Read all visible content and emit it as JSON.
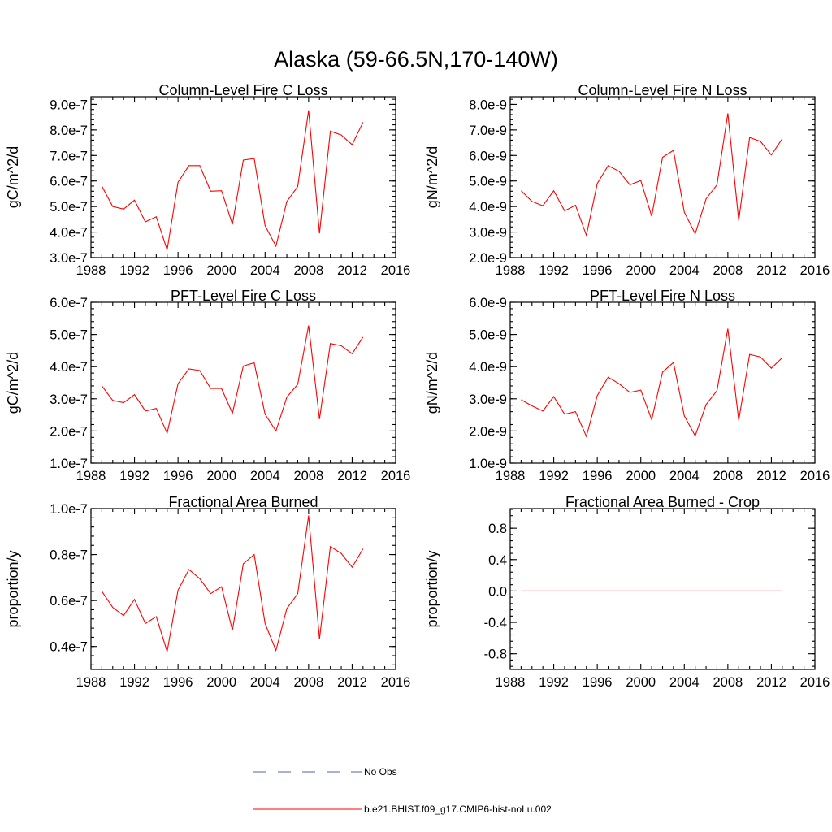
{
  "title": "Alaska (59-66.5N,170-140W)",
  "colors": {
    "model": "#ff0000",
    "obs": "#5060b0",
    "axis": "#000000"
  },
  "legend": {
    "items": [
      {
        "label": "No Obs",
        "style": "dashed",
        "color": "#5060b0"
      },
      {
        "label": "b.e21.BHIST.f09_g17.CMIP6-hist-noLu.002",
        "style": "solid",
        "color": "#ff0000"
      }
    ]
  },
  "chart_data": [
    {
      "type": "line",
      "title": "Column-Level Fire C Loss",
      "ylabel": "gC/m^2/d",
      "xlim": [
        1988,
        2016
      ],
      "ylim": [
        3e-07,
        9.3e-07
      ],
      "xticks": [
        1988,
        1992,
        1996,
        2000,
        2004,
        2008,
        2012,
        2016
      ],
      "yticks": [
        3e-07,
        4e-07,
        5e-07,
        6e-07,
        7e-07,
        8e-07,
        9e-07
      ],
      "ytick_labels": [
        "3.0e-7",
        "4.0e-7",
        "5.0e-7",
        "6.0e-7",
        "7.0e-7",
        "8.0e-7",
        "9.0e-7"
      ],
      "series": [
        {
          "name": "b.e21.BHIST.f09_g17.CMIP6-hist-noLu.002",
          "x": [
            1989,
            1990,
            1991,
            1992,
            1993,
            1994,
            1995,
            1996,
            1997,
            1998,
            1999,
            2000,
            2001,
            2002,
            2003,
            2004,
            2005,
            2006,
            2007,
            2008,
            2009,
            2010,
            2011,
            2012,
            2013
          ],
          "values": [
            5.8e-07,
            5e-07,
            4.9e-07,
            5.25e-07,
            4.4e-07,
            4.6e-07,
            3.3e-07,
            5.95e-07,
            6.6e-07,
            6.6e-07,
            5.6e-07,
            5.62e-07,
            4.3e-07,
            6.82e-07,
            6.88e-07,
            4.25e-07,
            3.45e-07,
            5.2e-07,
            5.78e-07,
            8.77e-07,
            3.95e-07,
            7.95e-07,
            7.8e-07,
            7.42e-07,
            8.3e-07
          ]
        }
      ]
    },
    {
      "type": "line",
      "title": "Column-Level Fire N Loss",
      "ylabel": "gN/m^2/d",
      "xlim": [
        1988,
        2016
      ],
      "ylim": [
        2e-09,
        8.3e-09
      ],
      "xticks": [
        1988,
        1992,
        1996,
        2000,
        2004,
        2008,
        2012,
        2016
      ],
      "yticks": [
        2e-09,
        3e-09,
        4e-09,
        5e-09,
        6e-09,
        7e-09,
        8e-09
      ],
      "ytick_labels": [
        "2.0e-9",
        "3.0e-9",
        "4.0e-9",
        "5.0e-9",
        "6.0e-9",
        "7.0e-9",
        "8.0e-9"
      ],
      "series": [
        {
          "name": "b.e21.BHIST.f09_g17.CMIP6-hist-noLu.002",
          "x": [
            1989,
            1990,
            1991,
            1992,
            1993,
            1994,
            1995,
            1996,
            1997,
            1998,
            1999,
            2000,
            2001,
            2002,
            2003,
            2004,
            2005,
            2006,
            2007,
            2008,
            2009,
            2010,
            2011,
            2012,
            2013
          ],
          "values": [
            4.62e-09,
            4.2e-09,
            4.03e-09,
            4.62e-09,
            3.83e-09,
            4.05e-09,
            2.87e-09,
            4.9e-09,
            5.6e-09,
            5.38e-09,
            4.85e-09,
            5.02e-09,
            3.62e-09,
            5.93e-09,
            6.2e-09,
            3.78e-09,
            2.93e-09,
            4.3e-09,
            4.85e-09,
            7.65e-09,
            3.45e-09,
            6.7e-09,
            6.55e-09,
            6.02e-09,
            6.65e-09
          ]
        }
      ]
    },
    {
      "type": "line",
      "title": "PFT-Level Fire C Loss",
      "ylabel": "gC/m^2/d",
      "xlim": [
        1988,
        2016
      ],
      "ylim": [
        1e-07,
        6e-07
      ],
      "xticks": [
        1988,
        1992,
        1996,
        2000,
        2004,
        2008,
        2012,
        2016
      ],
      "yticks": [
        1e-07,
        2e-07,
        3e-07,
        4e-07,
        5e-07,
        6e-07
      ],
      "ytick_labels": [
        "1.0e-7",
        "2.0e-7",
        "3.0e-7",
        "4.0e-7",
        "5.0e-7",
        "6.0e-7"
      ],
      "series": [
        {
          "name": "b.e21.BHIST.f09_g17.CMIP6-hist-noLu.002",
          "x": [
            1989,
            1990,
            1991,
            1992,
            1993,
            1994,
            1995,
            1996,
            1997,
            1998,
            1999,
            2000,
            2001,
            2002,
            2003,
            2004,
            2005,
            2006,
            2007,
            2008,
            2009,
            2010,
            2011,
            2012,
            2013
          ],
          "values": [
            3.4e-07,
            2.95e-07,
            2.88e-07,
            3.13e-07,
            2.62e-07,
            2.7e-07,
            1.93e-07,
            3.47e-07,
            3.93e-07,
            3.88e-07,
            3.32e-07,
            3.32e-07,
            2.55e-07,
            4.02e-07,
            4.12e-07,
            2.52e-07,
            2e-07,
            3.05e-07,
            3.45e-07,
            5.28e-07,
            2.37e-07,
            4.72e-07,
            4.65e-07,
            4.4e-07,
            4.92e-07
          ]
        }
      ]
    },
    {
      "type": "line",
      "title": "PFT-Level Fire N Loss",
      "ylabel": "gN/m^2/d",
      "xlim": [
        1988,
        2016
      ],
      "ylim": [
        1e-09,
        6e-09
      ],
      "xticks": [
        1988,
        1992,
        1996,
        2000,
        2004,
        2008,
        2012,
        2016
      ],
      "yticks": [
        1e-09,
        2e-09,
        3e-09,
        4e-09,
        5e-09,
        6e-09
      ],
      "ytick_labels": [
        "1.0e-9",
        "2.0e-9",
        "3.0e-9",
        "4.0e-9",
        "5.0e-9",
        "6.0e-9"
      ],
      "series": [
        {
          "name": "b.e21.BHIST.f09_g17.CMIP6-hist-noLu.002",
          "x": [
            1989,
            1990,
            1991,
            1992,
            1993,
            1994,
            1995,
            1996,
            1997,
            1998,
            1999,
            2000,
            2001,
            2002,
            2003,
            2004,
            2005,
            2006,
            2007,
            2008,
            2009,
            2010,
            2011,
            2012,
            2013
          ],
          "values": [
            2.97e-09,
            2.78e-09,
            2.62e-09,
            3.07e-09,
            2.52e-09,
            2.6e-09,
            1.83e-09,
            3.1e-09,
            3.67e-09,
            3.47e-09,
            3.2e-09,
            3.27e-09,
            2.35e-09,
            3.83e-09,
            4.13e-09,
            2.47e-09,
            1.85e-09,
            2.82e-09,
            3.25e-09,
            5.18e-09,
            2.33e-09,
            4.38e-09,
            4.3e-09,
            3.95e-09,
            4.28e-09
          ]
        }
      ]
    },
    {
      "type": "line",
      "title": "Fractional Area Burned",
      "ylabel": "proportion/y",
      "xlim": [
        1988,
        2016
      ],
      "ylim": [
        3e-08,
        1e-07
      ],
      "xticks": [
        1988,
        1992,
        1996,
        2000,
        2004,
        2008,
        2012,
        2016
      ],
      "yticks": [
        4e-08,
        6e-08,
        8e-08,
        1e-07
      ],
      "ytick_labels": [
        "0.4e-7",
        "0.6e-7",
        "0.8e-7",
        "1.0e-7"
      ],
      "series": [
        {
          "name": "b.e21.BHIST.f09_g17.CMIP6-hist-noLu.002",
          "x": [
            1989,
            1990,
            1991,
            1992,
            1993,
            1994,
            1995,
            1996,
            1997,
            1998,
            1999,
            2000,
            2001,
            2002,
            2003,
            2004,
            2005,
            2006,
            2007,
            2008,
            2009,
            2010,
            2011,
            2012,
            2013
          ],
          "values": [
            6.4e-08,
            5.7e-08,
            5.35e-08,
            6.05e-08,
            5e-08,
            5.3e-08,
            3.78e-08,
            6.45e-08,
            7.35e-08,
            6.95e-08,
            6.3e-08,
            6.6e-08,
            4.7e-08,
            7.6e-08,
            8e-08,
            5e-08,
            3.83e-08,
            5.65e-08,
            6.3e-08,
            9.7e-08,
            4.33e-08,
            8.35e-08,
            8.05e-08,
            7.45e-08,
            8.25e-08
          ]
        }
      ]
    },
    {
      "type": "line",
      "title": "Fractional Area Burned - Crop",
      "ylabel": "proportion/y",
      "xlim": [
        1988,
        2016
      ],
      "ylim": [
        -1.0,
        1.05
      ],
      "xticks": [
        1988,
        1992,
        1996,
        2000,
        2004,
        2008,
        2012,
        2016
      ],
      "yticks": [
        -0.8,
        -0.4,
        0.0,
        0.4,
        0.8
      ],
      "ytick_labels": [
        "-0.8",
        "-0.4",
        "0.0",
        "0.4",
        "0.8"
      ],
      "series": [
        {
          "name": "b.e21.BHIST.f09_g17.CMIP6-hist-noLu.002",
          "x": [
            1989,
            1990,
            1991,
            1992,
            1993,
            1994,
            1995,
            1996,
            1997,
            1998,
            1999,
            2000,
            2001,
            2002,
            2003,
            2004,
            2005,
            2006,
            2007,
            2008,
            2009,
            2010,
            2011,
            2012,
            2013
          ],
          "values": [
            0,
            0,
            0,
            0,
            0,
            0,
            0,
            0,
            0,
            0,
            0,
            0,
            0,
            0,
            0,
            0,
            0,
            0,
            0,
            0,
            0,
            0,
            0,
            0,
            0
          ]
        }
      ]
    }
  ]
}
